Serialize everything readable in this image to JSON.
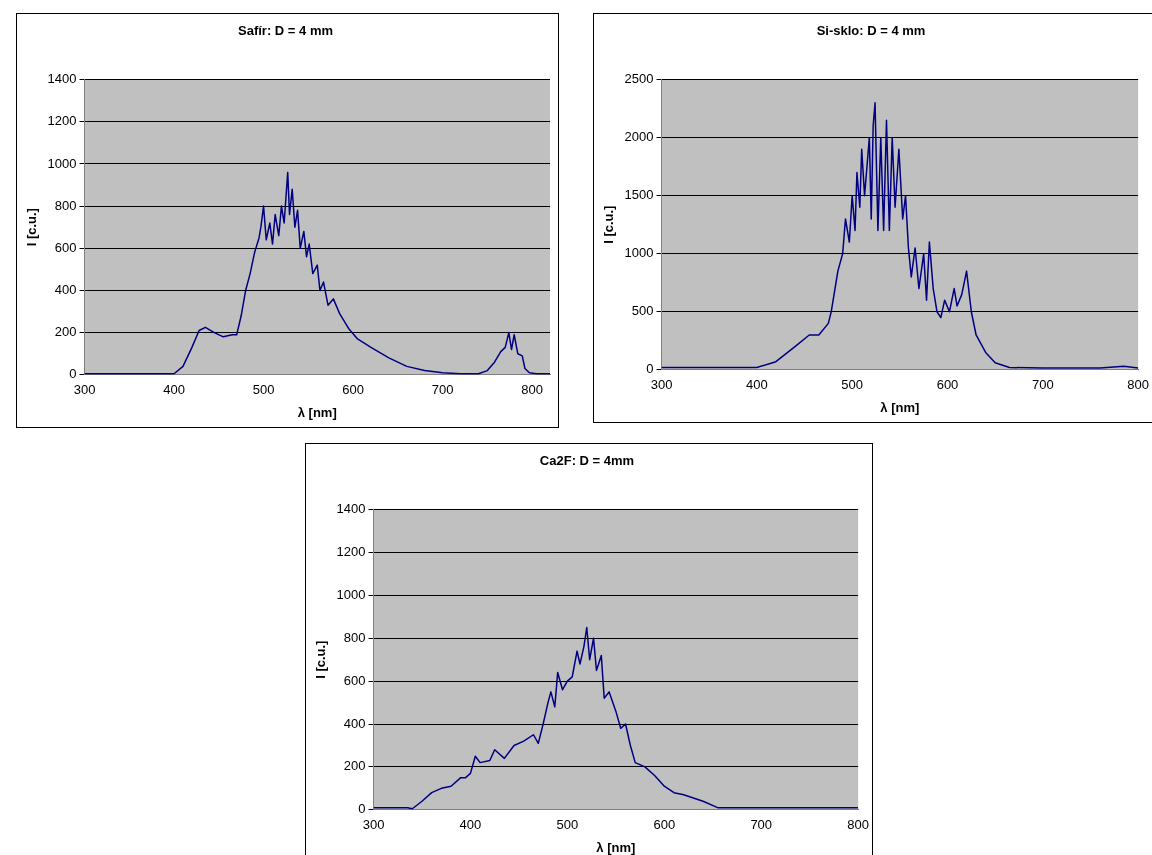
{
  "chart_data": [
    {
      "type": "line",
      "title": "Safír: D = 4 mm",
      "xlabel": "λ [nm]",
      "ylabel": "I [c.u.]",
      "color": "#000080",
      "grid": "y",
      "marker": "none",
      "xlim": [
        300,
        820
      ],
      "xticks": [
        300,
        400,
        500,
        600,
        700,
        800
      ],
      "ylim": [
        0,
        1400
      ],
      "yticks": [
        0,
        200,
        400,
        600,
        800,
        1000,
        1200,
        1400
      ],
      "x": [
        300,
        400,
        410,
        420,
        428,
        435,
        445,
        455,
        465,
        470,
        475,
        480,
        485,
        490,
        495,
        497,
        500,
        503,
        507,
        510,
        513,
        517,
        520,
        523,
        525,
        527,
        529,
        532,
        535,
        538,
        541,
        545,
        548,
        551,
        555,
        560,
        563,
        567,
        572,
        578,
        585,
        595,
        605,
        620,
        640,
        660,
        680,
        700,
        720,
        740,
        750,
        758,
        765,
        770,
        774,
        777,
        780,
        784,
        789,
        792,
        797,
        805,
        820
      ],
      "values": [
        5,
        5,
        40,
        130,
        210,
        225,
        200,
        180,
        190,
        190,
        280,
        400,
        480,
        580,
        650,
        700,
        800,
        640,
        720,
        620,
        760,
        660,
        800,
        720,
        840,
        960,
        760,
        880,
        700,
        780,
        600,
        680,
        560,
        620,
        480,
        520,
        400,
        440,
        330,
        360,
        290,
        220,
        170,
        130,
        80,
        40,
        20,
        10,
        5,
        5,
        20,
        60,
        110,
        130,
        200,
        120,
        190,
        100,
        90,
        30,
        10,
        5,
        5
      ]
    },
    {
      "type": "line",
      "title": "Si-sklo: D = 4 mm",
      "xlabel": "λ [nm]",
      "ylabel": "I [c.u.]",
      "color": "#000080",
      "grid": "y",
      "marker": "none",
      "xlim": [
        300,
        800
      ],
      "xticks": [
        300,
        400,
        500,
        600,
        700,
        800
      ],
      "ylim": [
        0,
        2500
      ],
      "yticks": [
        0,
        500,
        1000,
        1500,
        2000,
        2500
      ],
      "x": [
        300,
        400,
        420,
        440,
        455,
        465,
        475,
        478,
        482,
        485,
        490,
        493,
        497,
        500,
        503,
        505,
        508,
        510,
        513,
        515,
        518,
        520,
        522,
        524,
        527,
        530,
        533,
        536,
        539,
        542,
        545,
        549,
        553,
        556,
        559,
        562,
        566,
        570,
        575,
        578,
        581,
        585,
        589,
        593,
        597,
        602,
        607,
        610,
        615,
        620,
        625,
        630,
        640,
        650,
        665,
        700,
        760,
        785,
        800
      ],
      "values": [
        20,
        20,
        70,
        200,
        300,
        300,
        400,
        500,
        700,
        850,
        1000,
        1300,
        1100,
        1500,
        1200,
        1700,
        1400,
        1900,
        1500,
        1700,
        2000,
        1300,
        2100,
        2300,
        1200,
        2000,
        1200,
        2150,
        1200,
        2000,
        1400,
        1900,
        1300,
        1500,
        1050,
        800,
        1050,
        700,
        1000,
        600,
        1100,
        700,
        500,
        450,
        600,
        500,
        700,
        550,
        650,
        850,
        500,
        300,
        150,
        60,
        20,
        15,
        15,
        30,
        15
      ]
    },
    {
      "type": "line",
      "title": "Ca2F: D = 4mm",
      "xlabel": "λ [nm]",
      "ylabel": "I [c.u.]",
      "color": "#000080",
      "grid": "y",
      "marker": "none",
      "xlim": [
        300,
        800
      ],
      "xticks": [
        300,
        400,
        500,
        600,
        700,
        800
      ],
      "ylim": [
        0,
        1400
      ],
      "yticks": [
        0,
        200,
        400,
        600,
        800,
        1000,
        1200,
        1400
      ],
      "x": [
        300,
        335,
        340,
        350,
        360,
        370,
        380,
        390,
        395,
        400,
        405,
        410,
        420,
        425,
        435,
        445,
        455,
        465,
        470,
        475,
        480,
        483,
        487,
        490,
        495,
        500,
        505,
        510,
        513,
        517,
        520,
        523,
        527,
        530,
        535,
        538,
        543,
        550,
        555,
        560,
        565,
        570,
        580,
        590,
        600,
        610,
        620,
        640,
        655,
        700,
        800
      ],
      "values": [
        10,
        10,
        5,
        40,
        80,
        100,
        110,
        150,
        150,
        170,
        250,
        220,
        230,
        280,
        240,
        300,
        320,
        350,
        310,
        400,
        500,
        550,
        480,
        640,
        560,
        600,
        620,
        740,
        680,
        760,
        850,
        700,
        800,
        650,
        720,
        520,
        550,
        460,
        380,
        400,
        300,
        220,
        200,
        160,
        110,
        80,
        70,
        40,
        10,
        10,
        10
      ]
    }
  ]
}
